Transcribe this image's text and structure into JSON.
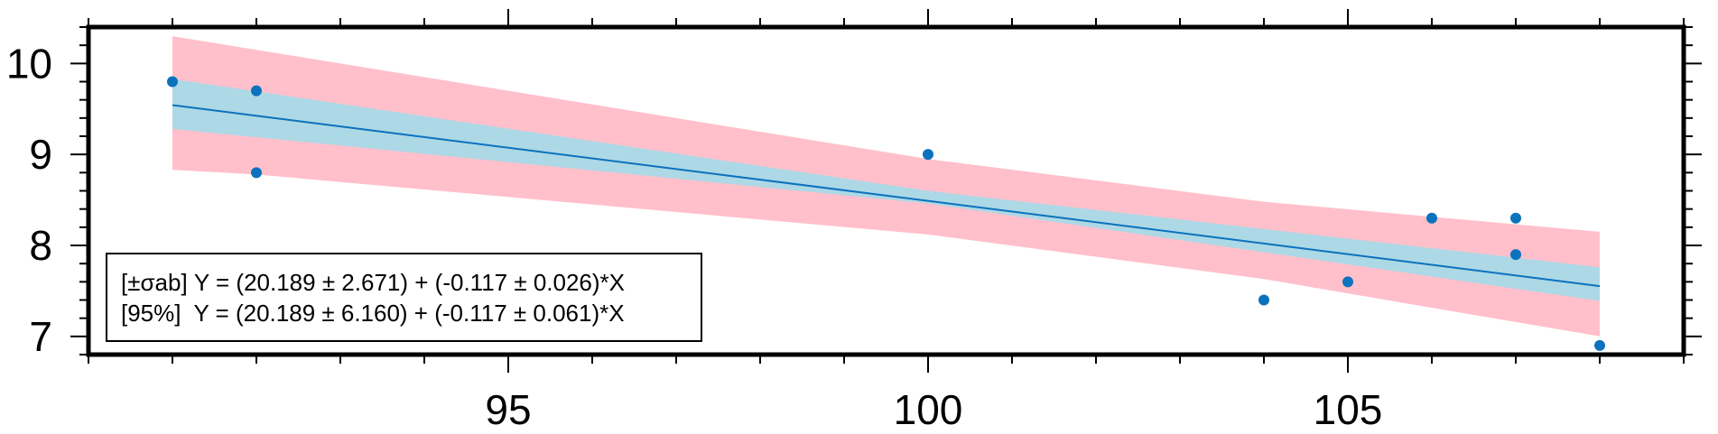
{
  "chart_data": {
    "type": "scatter",
    "title": "",
    "xlabel": "",
    "ylabel": "",
    "xlim": [
      90,
      109
    ],
    "ylim": [
      6.8,
      10.4
    ],
    "x_ticks": [
      95,
      100,
      105
    ],
    "y_ticks": [
      7,
      8,
      9,
      10
    ],
    "x_minor_step": 1,
    "y_minor_step": 0.2,
    "grid": false,
    "points": {
      "x": [
        91,
        92,
        92,
        100,
        104,
        105,
        106,
        107,
        107,
        108
      ],
      "y": [
        9.8,
        9.7,
        8.8,
        9.0,
        7.4,
        7.6,
        8.3,
        8.3,
        7.9,
        6.9
      ]
    },
    "fit": {
      "intercept": 20.189,
      "slope": -0.117,
      "x_range": [
        91,
        108
      ]
    },
    "confidence_band_sigma": {
      "x": [
        91,
        100,
        108
      ],
      "lower": [
        9.28,
        8.46,
        7.39
      ],
      "upper": [
        9.83,
        8.6,
        7.76
      ]
    },
    "confidence_band_95": {
      "x": [
        91,
        92,
        100,
        104,
        108
      ],
      "lower": [
        8.83,
        8.78,
        8.12,
        7.63,
        7.0
      ],
      "upper": [
        10.3,
        10.15,
        8.95,
        8.48,
        8.15
      ]
    },
    "legend": {
      "placement": "bottom-left",
      "lines": [
        "[±σab] Y = (20.189 ± 2.671) + (-0.117 ± 0.026)*X",
        "[95%]  Y = (20.189 ± 6.160) + (-0.117 ± 0.061)*X"
      ]
    },
    "colors": {
      "points": "#0b72bd",
      "fit_line": "#0b72bd",
      "band_sigma": "#add8e6",
      "band_95": "#ffc0cb",
      "frame": "#000000"
    }
  }
}
